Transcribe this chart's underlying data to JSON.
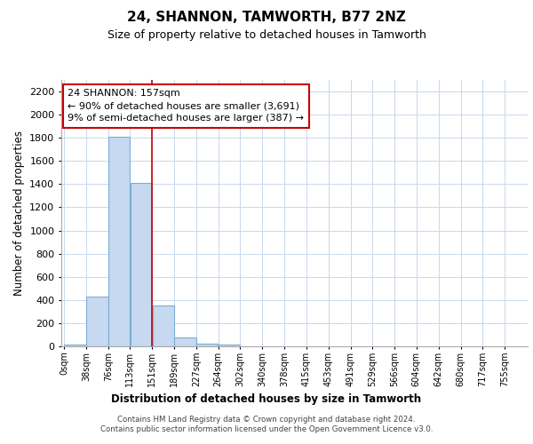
{
  "title": "24, SHANNON, TAMWORTH, B77 2NZ",
  "subtitle": "Size of property relative to detached houses in Tamworth",
  "xlabel": "Distribution of detached houses by size in Tamworth",
  "ylabel": "Number of detached properties",
  "footer_line1": "Contains HM Land Registry data © Crown copyright and database right 2024.",
  "footer_line2": "Contains public sector information licensed under the Open Government Licence v3.0.",
  "annotation_title": "24 SHANNON: 157sqm",
  "annotation_line1": "← 90% of detached houses are smaller (3,691)",
  "annotation_line2": "9% of semi-detached houses are larger (387) →",
  "bar_starts": [
    0,
    38,
    76,
    113,
    151,
    189,
    227,
    264,
    302,
    340,
    378,
    415,
    453,
    491,
    529,
    566,
    604,
    642,
    680,
    717
  ],
  "bar_widths": [
    38,
    38,
    37,
    38,
    38,
    38,
    37,
    38,
    38,
    38,
    37,
    38,
    38,
    38,
    37,
    38,
    38,
    38,
    37,
    38
  ],
  "bar_heights": [
    15,
    430,
    1810,
    1410,
    350,
    80,
    22,
    12,
    0,
    0,
    0,
    0,
    0,
    0,
    0,
    0,
    0,
    0,
    0,
    0
  ],
  "bar_color": "#c6d9f0",
  "bar_edge_color": "#7bafd4",
  "vline_color": "#cc0000",
  "vline_x": 151,
  "annotation_box_color": "#cc0000",
  "grid_color": "#c8d8ec",
  "background_color": "#ffffff",
  "ylim": [
    0,
    2300
  ],
  "yticks": [
    0,
    200,
    400,
    600,
    800,
    1000,
    1200,
    1400,
    1600,
    1800,
    2000,
    2200
  ],
  "xlim": [
    -5,
    795
  ],
  "xtick_labels": [
    "0sqm",
    "38sqm",
    "76sqm",
    "113sqm",
    "151sqm",
    "189sqm",
    "227sqm",
    "264sqm",
    "302sqm",
    "340sqm",
    "378sqm",
    "415sqm",
    "453sqm",
    "491sqm",
    "529sqm",
    "566sqm",
    "604sqm",
    "642sqm",
    "680sqm",
    "717sqm",
    "755sqm"
  ],
  "xtick_positions": [
    0,
    38,
    76,
    113,
    151,
    189,
    227,
    264,
    302,
    340,
    378,
    415,
    453,
    491,
    529,
    566,
    604,
    642,
    680,
    717,
    755
  ]
}
